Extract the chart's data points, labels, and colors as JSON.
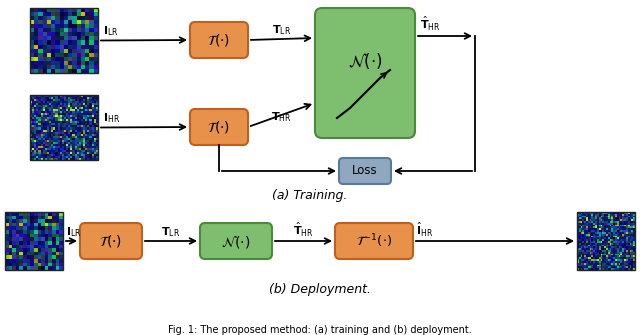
{
  "fig_width": 6.4,
  "fig_height": 3.35,
  "dpi": 100,
  "bg_color": "#ffffff",
  "orange_color": "#E8914A",
  "orange_edge": "#C06020",
  "green_color": "#7DBF6E",
  "green_edge": "#4A8A3A",
  "blue_color": "#8FA8C0",
  "blue_edge": "#5A7A9A",
  "caption_a": "(a) Training.",
  "caption_b": "(b) Deployment.",
  "fig_caption": "Fig. 1: The proposed method: (a) training and (b) deployment."
}
